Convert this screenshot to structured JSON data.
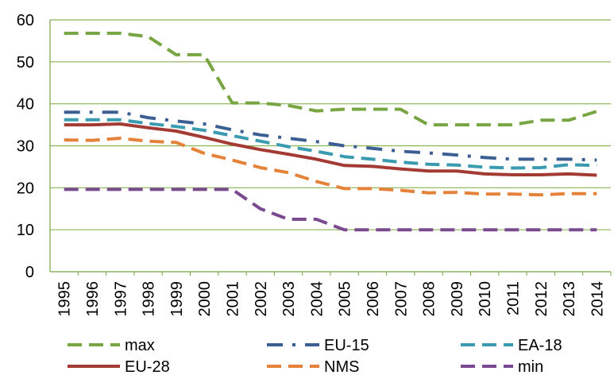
{
  "chart_data": {
    "type": "line",
    "title": "",
    "xlabel": "",
    "ylabel": "",
    "ylim": [
      0,
      60
    ],
    "y_ticks": [
      0,
      10,
      20,
      30,
      40,
      50,
      60
    ],
    "grid": "horizontal",
    "legend_position": "bottom",
    "categories": [
      "1995",
      "1996",
      "1997",
      "1998",
      "1999",
      "2000",
      "2001",
      "2002",
      "2003",
      "2004",
      "2005",
      "2006",
      "2007",
      "2008",
      "2009",
      "2010",
      "2011",
      "2012",
      "2013",
      "2014"
    ],
    "series": [
      {
        "name": "max",
        "color": "#77a542",
        "dash": "dashed",
        "values": [
          56.8,
          56.8,
          56.8,
          56.0,
          51.7,
          51.7,
          40.2,
          40.2,
          39.6,
          38.3,
          38.7,
          38.7,
          38.7,
          35.0,
          35.0,
          35.0,
          35.0,
          36.1,
          36.1,
          38.2
        ]
      },
      {
        "name": "EU-15",
        "color": "#3b5f93",
        "dash": "dash-dot",
        "values": [
          38.0,
          38.0,
          38.0,
          36.7,
          35.9,
          35.2,
          33.8,
          32.6,
          31.8,
          31.0,
          30.0,
          29.4,
          28.7,
          28.3,
          27.8,
          27.2,
          26.8,
          26.8,
          26.8,
          26.6
        ]
      },
      {
        "name": "EA-18",
        "color": "#3a9bb0",
        "dash": "dashed",
        "values": [
          36.2,
          36.2,
          36.2,
          35.3,
          34.6,
          33.7,
          32.4,
          31.1,
          29.8,
          28.7,
          27.4,
          26.8,
          26.1,
          25.6,
          25.4,
          24.9,
          24.7,
          24.8,
          25.5,
          25.3
        ]
      },
      {
        "name": "EU-28",
        "color": "#a33b34",
        "dash": "solid",
        "values": [
          35.0,
          35.0,
          35.2,
          34.3,
          33.5,
          32.0,
          30.4,
          29.1,
          28.0,
          26.8,
          25.3,
          25.1,
          24.5,
          24.0,
          24.0,
          23.3,
          23.1,
          23.1,
          23.3,
          23.0
        ]
      },
      {
        "name": "NMS",
        "color": "#e5823a",
        "dash": "dashed",
        "values": [
          31.4,
          31.3,
          31.8,
          31.1,
          30.8,
          28.2,
          26.6,
          24.8,
          23.6,
          21.5,
          19.8,
          19.8,
          19.4,
          18.8,
          18.9,
          18.5,
          18.5,
          18.3,
          18.6,
          18.6
        ]
      },
      {
        "name": "min",
        "color": "#7a4a90",
        "dash": "dashed",
        "values": [
          19.6,
          19.6,
          19.6,
          19.6,
          19.6,
          19.6,
          19.6,
          15.0,
          12.5,
          12.5,
          10.0,
          10.0,
          10.0,
          10.0,
          10.0,
          10.0,
          10.0,
          10.0,
          10.0,
          10.0
        ]
      }
    ]
  }
}
